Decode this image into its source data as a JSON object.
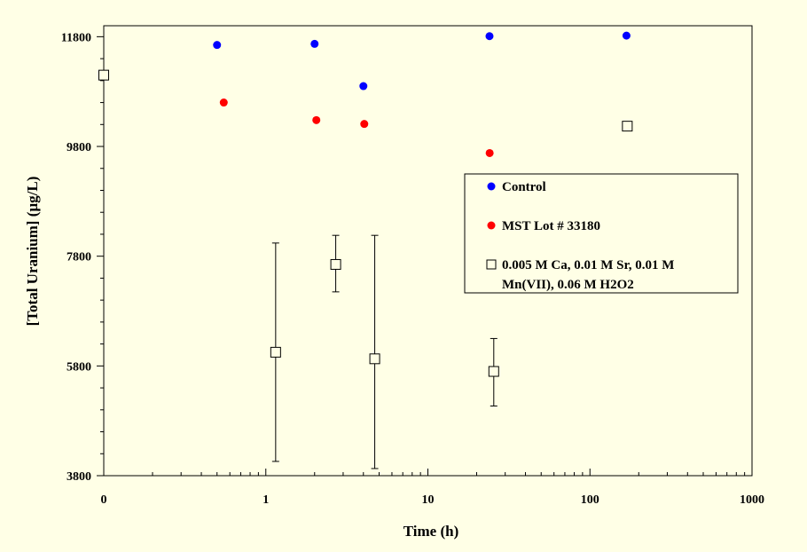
{
  "chart_data": {
    "type": "scatter",
    "title": "",
    "xlabel": "Time (h)",
    "ylabel": "[Total Uranium]  (µg/L)",
    "x_scale": "log",
    "xlim": [
      0.1,
      1000
    ],
    "ylim": [
      3800,
      12000
    ],
    "x_tick_labels": [
      {
        "value": 0.1,
        "label": "0"
      },
      {
        "value": 1,
        "label": "1"
      },
      {
        "value": 10,
        "label": "10"
      },
      {
        "value": 100,
        "label": "100"
      },
      {
        "value": 1000,
        "label": "1000"
      }
    ],
    "y_ticks": [
      3800,
      5800,
      7800,
      9800,
      11800
    ],
    "y_minor_step": 400,
    "grid": false,
    "legend_position": "right-middle",
    "series": [
      {
        "name": "Control",
        "color": "#0000ff",
        "marker": "filled-circle",
        "x": [
          0.5,
          2,
          4,
          24,
          168
        ],
        "y": [
          11650,
          11670,
          10900,
          11810,
          11820
        ]
      },
      {
        "name": "MST Lot # 33180",
        "color": "#ff0000",
        "marker": "filled-circle",
        "x": [
          0.55,
          2.05,
          4.05,
          24.05
        ],
        "y": [
          10600,
          10280,
          10210,
          9680
        ]
      },
      {
        "name": "0.005 M Ca, 0.01 M Sr, 0.01 M Mn(VII), 0.06 M H2O2",
        "color": "#000000",
        "marker": "open-square",
        "x": [
          0.1,
          1.15,
          2.7,
          4.7,
          25.5,
          170
        ],
        "y": [
          11100,
          6050,
          7650,
          5930,
          5700,
          10170
        ],
        "y_err_low": [
          null,
          4060,
          7150,
          3930,
          5070,
          null
        ],
        "y_err_high": [
          null,
          8040,
          8180,
          8180,
          6300,
          null
        ]
      }
    ]
  }
}
